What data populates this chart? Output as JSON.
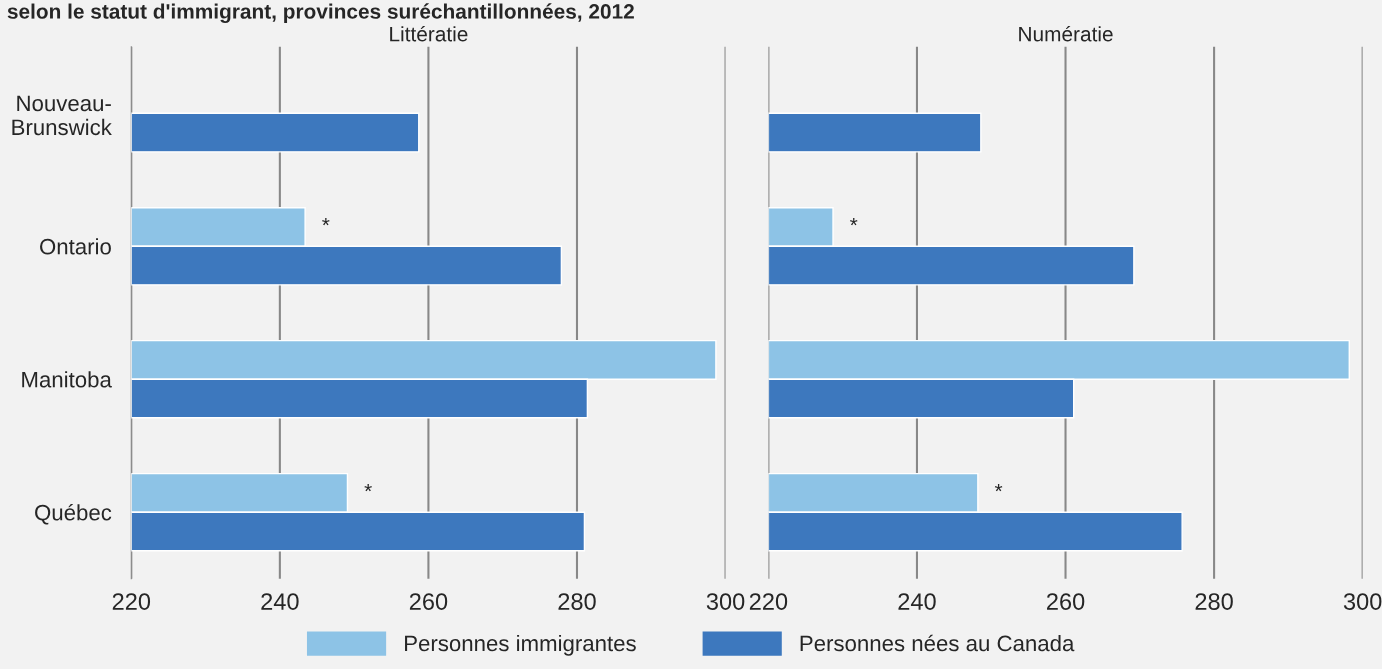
{
  "chart_data": [
    {
      "type": "bar",
      "orientation": "horizontal",
      "title": "Littératie",
      "annotations": [
        "selon le statut d'immigrant, provinces suréchantillonnées, 2012",
        {
          "text": "*",
          "x": 243.4,
          "y": "Ontario"
        },
        {
          "text": "*",
          "x": 249.1,
          "y": "Québec"
        }
      ],
      "categories": [
        "Nouveau-\nBrunswick",
        "Ontario",
        "Manitoba",
        "Québec"
      ],
      "series": [
        {
          "name": "Personnes immigrantes",
          "color": "#8dc3e6",
          "values": [
            null,
            243.4,
            298.7,
            249.1
          ]
        },
        {
          "name": "Personnes nées au Canada",
          "color": "#3d78be",
          "values": [
            258.7,
            277.9,
            281.4,
            281.0
          ]
        }
      ],
      "xlim": [
        220,
        300
      ],
      "xticks": [
        220,
        240,
        260,
        280,
        300
      ],
      "grid": "x",
      "legend": "bottom"
    },
    {
      "type": "bar",
      "orientation": "horizontal",
      "title": "Numératie",
      "annotations": [
        {
          "text": "*",
          "x": 228.7,
          "y": "Ontario"
        },
        {
          "text": "*",
          "x": 248.2,
          "y": "Québec"
        }
      ],
      "categories": [
        "Nouveau-\nBrunswick",
        "Ontario",
        "Manitoba",
        "Québec"
      ],
      "series": [
        {
          "color": "#8dc3e6",
          "values": [
            null,
            228.7,
            298.2,
            248.2
          ]
        },
        {
          "color": "#3d78be",
          "values": [
            248.6,
            269.2,
            261.1,
            275.7
          ]
        }
      ],
      "xlim": [
        220,
        300
      ],
      "xticks": [
        220,
        240,
        260,
        280,
        300
      ],
      "grid": "x",
      "tick_labels": "x"
    }
  ]
}
